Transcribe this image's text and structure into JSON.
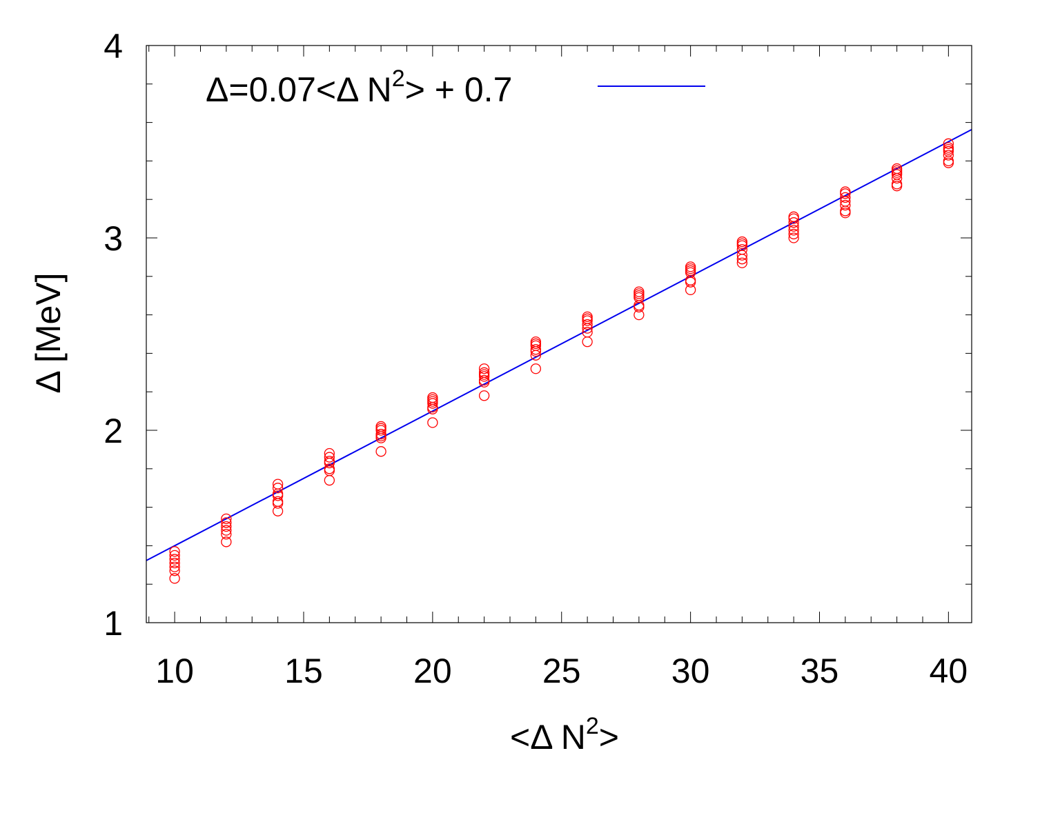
{
  "chart_data": {
    "type": "scatter",
    "title": "",
    "xlabel": {
      "prefix": "<Δ N",
      "sup": "2",
      "suffix": ">"
    },
    "ylabel": "Δ [MeV]",
    "xlim": [
      8.9,
      40.9
    ],
    "ylim": [
      1,
      4
    ],
    "x_ticks": [
      10,
      15,
      20,
      25,
      30,
      35,
      40
    ],
    "x_tick_labels": [
      "10",
      "15",
      "20",
      "25",
      "30",
      "35",
      "40"
    ],
    "y_ticks": [
      1,
      2,
      3,
      4
    ],
    "y_tick_labels": [
      "1",
      "2",
      "3",
      "4"
    ],
    "x_minor_step": 1,
    "y_minor_step": 0.2,
    "grid": false,
    "legend": {
      "position": "top-left",
      "entry": {
        "prefix": "Δ=0.07<Δ N",
        "sup": "2",
        "suffix": "> + 0.7"
      }
    },
    "fit_line": {
      "slope": 0.07,
      "intercept": 0.7,
      "color": "#0000ee"
    },
    "marker_color": "#ff0000",
    "series": [
      {
        "marker": "open-circle",
        "points": [
          [
            10,
            1.23
          ],
          [
            10,
            1.27
          ],
          [
            10,
            1.29
          ],
          [
            10,
            1.31
          ],
          [
            10,
            1.33
          ],
          [
            10,
            1.35
          ],
          [
            10,
            1.37
          ],
          [
            12,
            1.42
          ],
          [
            12,
            1.46
          ],
          [
            12,
            1.48
          ],
          [
            12,
            1.5
          ],
          [
            12,
            1.52
          ],
          [
            12,
            1.54
          ],
          [
            14,
            1.58
          ],
          [
            14,
            1.62
          ],
          [
            14,
            1.63
          ],
          [
            14,
            1.66
          ],
          [
            14,
            1.67
          ],
          [
            14,
            1.7
          ],
          [
            14,
            1.72
          ],
          [
            16,
            1.74
          ],
          [
            16,
            1.79
          ],
          [
            16,
            1.8
          ],
          [
            16,
            1.83
          ],
          [
            16,
            1.84
          ],
          [
            16,
            1.86
          ],
          [
            16,
            1.88
          ],
          [
            18,
            1.89
          ],
          [
            18,
            1.96
          ],
          [
            18,
            1.97
          ],
          [
            18,
            1.98
          ],
          [
            18,
            2.0
          ],
          [
            18,
            2.01
          ],
          [
            18,
            2.02
          ],
          [
            20,
            2.04
          ],
          [
            20,
            2.11
          ],
          [
            20,
            2.12
          ],
          [
            20,
            2.14
          ],
          [
            20,
            2.15
          ],
          [
            20,
            2.16
          ],
          [
            20,
            2.17
          ],
          [
            22,
            2.18
          ],
          [
            22,
            2.25
          ],
          [
            22,
            2.26
          ],
          [
            22,
            2.28
          ],
          [
            22,
            2.29
          ],
          [
            22,
            2.3
          ],
          [
            22,
            2.32
          ],
          [
            24,
            2.32
          ],
          [
            24,
            2.39
          ],
          [
            24,
            2.41
          ],
          [
            24,
            2.42
          ],
          [
            24,
            2.44
          ],
          [
            24,
            2.45
          ],
          [
            24,
            2.46
          ],
          [
            26,
            2.46
          ],
          [
            26,
            2.51
          ],
          [
            26,
            2.53
          ],
          [
            26,
            2.55
          ],
          [
            26,
            2.57
          ],
          [
            26,
            2.58
          ],
          [
            26,
            2.59
          ],
          [
            28,
            2.6
          ],
          [
            28,
            2.64
          ],
          [
            28,
            2.65
          ],
          [
            28,
            2.69
          ],
          [
            28,
            2.7
          ],
          [
            28,
            2.71
          ],
          [
            28,
            2.72
          ],
          [
            30,
            2.73
          ],
          [
            30,
            2.77
          ],
          [
            30,
            2.78
          ],
          [
            30,
            2.82
          ],
          [
            30,
            2.83
          ],
          [
            30,
            2.84
          ],
          [
            30,
            2.85
          ],
          [
            32,
            2.87
          ],
          [
            32,
            2.89
          ],
          [
            32,
            2.91
          ],
          [
            32,
            2.94
          ],
          [
            32,
            2.96
          ],
          [
            32,
            2.97
          ],
          [
            32,
            2.98
          ],
          [
            34,
            3.0
          ],
          [
            34,
            3.02
          ],
          [
            34,
            3.04
          ],
          [
            34,
            3.06
          ],
          [
            34,
            3.08
          ],
          [
            34,
            3.1
          ],
          [
            34,
            3.11
          ],
          [
            36,
            3.13
          ],
          [
            36,
            3.14
          ],
          [
            36,
            3.17
          ],
          [
            36,
            3.19
          ],
          [
            36,
            3.21
          ],
          [
            36,
            3.23
          ],
          [
            36,
            3.24
          ],
          [
            38,
            3.27
          ],
          [
            38,
            3.28
          ],
          [
            38,
            3.31
          ],
          [
            38,
            3.33
          ],
          [
            38,
            3.34
          ],
          [
            38,
            3.35
          ],
          [
            38,
            3.36
          ],
          [
            40,
            3.39
          ],
          [
            40,
            3.4
          ],
          [
            40,
            3.43
          ],
          [
            40,
            3.45
          ],
          [
            40,
            3.46
          ],
          [
            40,
            3.47
          ],
          [
            40,
            3.49
          ]
        ]
      }
    ]
  }
}
